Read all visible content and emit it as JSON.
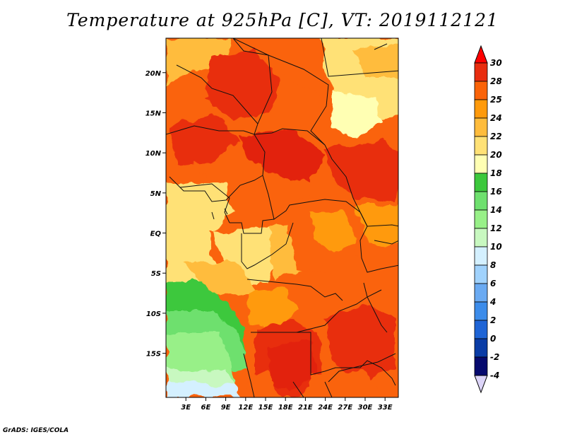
{
  "title": "Temperature at 925hPa [C], VT: 2019112121",
  "credit": "GrADS: IGES/COLA",
  "map": {
    "region": "Central Africa",
    "lon_range": [
      0,
      35
    ],
    "lat_range": [
      -20,
      25
    ],
    "x_ticks": [
      "3E",
      "6E",
      "9E",
      "12E",
      "15E",
      "18E",
      "21E",
      "24E",
      "27E",
      "30E",
      "33E"
    ],
    "y_ticks": [
      "20N",
      "15N",
      "10N",
      "5N",
      "EQ",
      "5S",
      "10S",
      "15S"
    ],
    "field": "temperature_925hPa",
    "units": "C"
  },
  "colorbar": {
    "levels": [
      "30",
      "28",
      "25",
      "24",
      "22",
      "20",
      "18",
      "16",
      "14",
      "12",
      "10",
      "8",
      "6",
      "4",
      "2",
      "0",
      "-2",
      "-4"
    ],
    "colors": [
      "#ff0000",
      "#e82d0f",
      "#fa6308",
      "#ff9a0b",
      "#ffbc3c",
      "#ffe176",
      "#ffffb3",
      "#3cc83c",
      "#6ee06e",
      "#98f088",
      "#c8f8c0",
      "#d4f0ff",
      "#a0d2fc",
      "#6aaaf2",
      "#3c8cea",
      "#1e64d6",
      "#0a3ca6",
      "#060a6e",
      "#dcd4f8"
    ]
  }
}
